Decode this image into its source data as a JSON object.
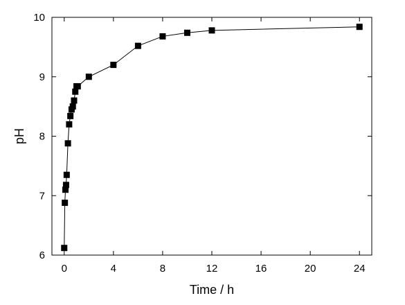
{
  "chart_data": {
    "type": "line",
    "title": "",
    "xlabel": "Time / h",
    "ylabel": "pH",
    "xlim": [
      -1,
      25
    ],
    "ylim": [
      6,
      10
    ],
    "xticks": [
      0,
      4,
      8,
      12,
      16,
      20,
      24
    ],
    "yticks": [
      6,
      7,
      8,
      9,
      10
    ],
    "grid": false,
    "marker": "square",
    "colors": {
      "series": "#000000",
      "axes": "#000000",
      "background": "#ffffff"
    },
    "series": [
      {
        "x": [
          0.0,
          0.05,
          0.1,
          0.15,
          0.2,
          0.3,
          0.4,
          0.5,
          0.6,
          0.7,
          0.8,
          0.9,
          1.0,
          1.1,
          2.0,
          4.0,
          6.0,
          8.0,
          10.0,
          12.0,
          24.0
        ],
        "y": [
          6.12,
          6.88,
          7.1,
          7.18,
          7.35,
          7.88,
          8.2,
          8.34,
          8.45,
          8.5,
          8.6,
          8.75,
          8.84,
          8.84,
          9.0,
          9.2,
          9.52,
          9.68,
          9.74,
          9.78,
          9.84
        ]
      }
    ]
  }
}
